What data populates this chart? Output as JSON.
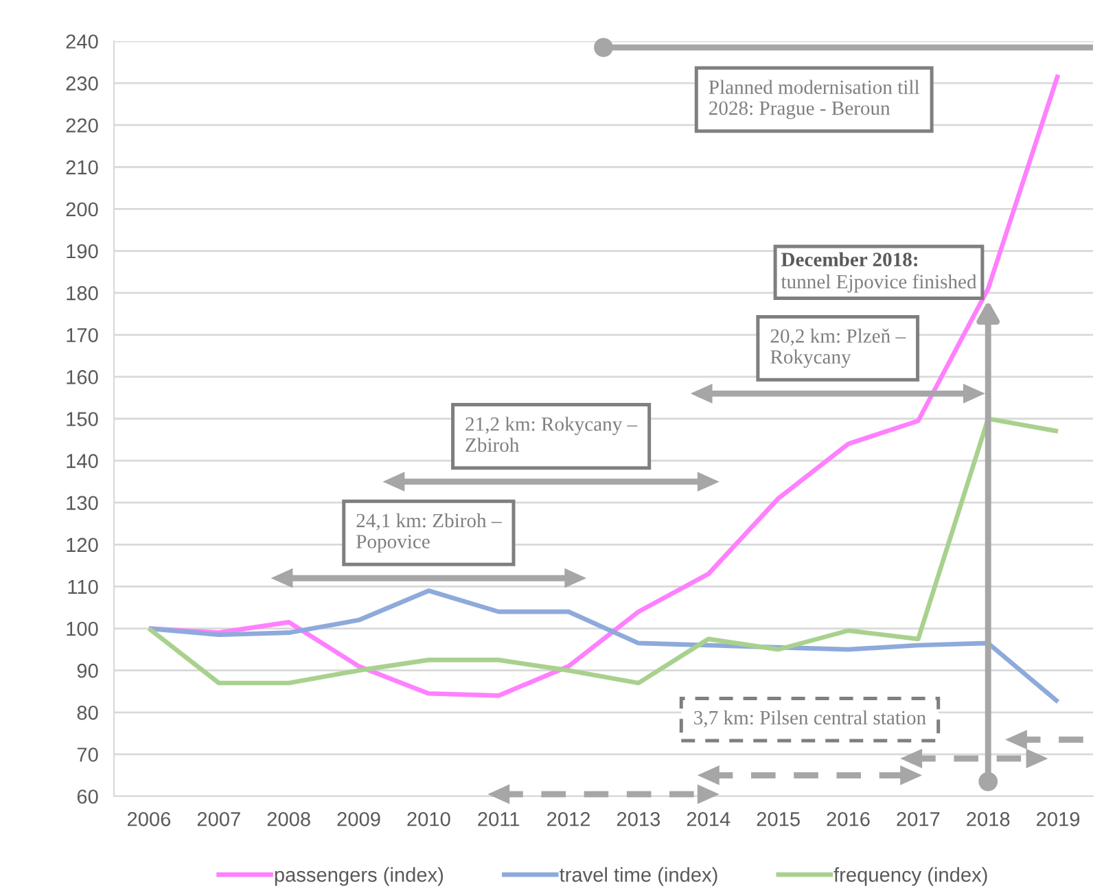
{
  "chart_data": {
    "type": "line",
    "x": [
      2006,
      2007,
      2008,
      2009,
      2010,
      2011,
      2012,
      2013,
      2014,
      2015,
      2016,
      2017,
      2018,
      2019
    ],
    "xlim": [
      2005.5,
      2019.5
    ],
    "xticks": [
      2006,
      2007,
      2008,
      2009,
      2010,
      2011,
      2012,
      2013,
      2014,
      2015,
      2016,
      2017,
      2018,
      2019
    ],
    "ylim": [
      60,
      240
    ],
    "yticks": [
      60,
      70,
      80,
      90,
      100,
      110,
      120,
      130,
      140,
      150,
      160,
      170,
      180,
      190,
      200,
      210,
      220,
      230,
      240
    ],
    "grid": "y",
    "legend": "bottom",
    "series": [
      {
        "name": "passengers (index)",
        "color": "#ff80ff",
        "values": [
          100,
          99,
          101.5,
          91,
          84.5,
          84,
          91,
          104,
          113,
          131,
          144,
          149.5,
          181,
          232
        ]
      },
      {
        "name": "travel time (index)",
        "color": "#8eaadb",
        "values": [
          100,
          98.5,
          99,
          102,
          109,
          104,
          104,
          96.5,
          96,
          95.5,
          95,
          96,
          96.5,
          82.5
        ]
      },
      {
        "name": "frequency (index)",
        "color": "#a9d18e",
        "values": [
          100,
          87,
          87,
          90,
          92.5,
          92.5,
          90,
          87,
          97.5,
          95,
          99.5,
          97.5,
          150,
          147
        ]
      },
      {
        "type": "line",
        "name": "24,1 km: Zbiroh –\nPopovice",
        "x": [
          2007.9,
          2012.1
        ],
        "values": [
          112,
          112
        ],
        "color": "#a6a6a6",
        "line_style": "solid",
        "marker": "triangle"
      },
      {
        "type": "line",
        "name": "21,2 km: Rokycany –\nZbiroh",
        "x": [
          2009.5,
          2014
        ],
        "values": [
          135,
          135
        ],
        "color": "#a6a6a6",
        "line_style": "solid",
        "marker": "triangle"
      },
      {
        "type": "line",
        "name": "20,2 km: Plzeň –\nRokycany",
        "x": [
          2013.9,
          2017.8
        ],
        "values": [
          156,
          156
        ],
        "color": "#a6a6a6",
        "line_style": "solid",
        "marker": "triangle"
      },
      {
        "type": "line",
        "name": "Planned modernisation till\n2028: Prague - Beroun",
        "x": [
          2012.5,
          2019.5
        ],
        "values": [
          238.5,
          238.5
        ],
        "color": "#a6a6a6",
        "line_style": "solid",
        "marker": "circle"
      },
      {
        "type": "line",
        "x": [
          2011,
          2014
        ],
        "values": [
          60.5,
          60.5
        ],
        "color": "#a6a6a6",
        "line_style": "dashed",
        "marker": "triangle"
      },
      {
        "type": "line",
        "name": "3,7 km: Pilsen central station",
        "x": [
          2014,
          2016.9
        ],
        "values": [
          65,
          65
        ],
        "color": "#a6a6a6",
        "line_style": "dashed",
        "marker": "triangle"
      },
      {
        "type": "line",
        "x": [
          2016.9,
          2018.7
        ],
        "values": [
          69,
          69
        ],
        "color": "#a6a6a6",
        "line_style": "dashed",
        "marker": "triangle"
      },
      {
        "type": "line",
        "x": [
          2018.4,
          2019.5
        ],
        "values": [
          73.5,
          73.5
        ],
        "color": "#a6a6a6",
        "line_style": "dashed",
        "marker": "triangle"
      },
      {
        "type": "scatter",
        "x": [
          2018
        ],
        "values": [
          63.5
        ],
        "color": "#a6a6a6",
        "marker": "circle"
      }
    ],
    "ref_lines": [
      {
        "axis": "x",
        "value": 2018,
        "label": "December 2018:\ntunnel Ejpovice finished",
        "color": "#a6a6a6"
      }
    ]
  }
}
